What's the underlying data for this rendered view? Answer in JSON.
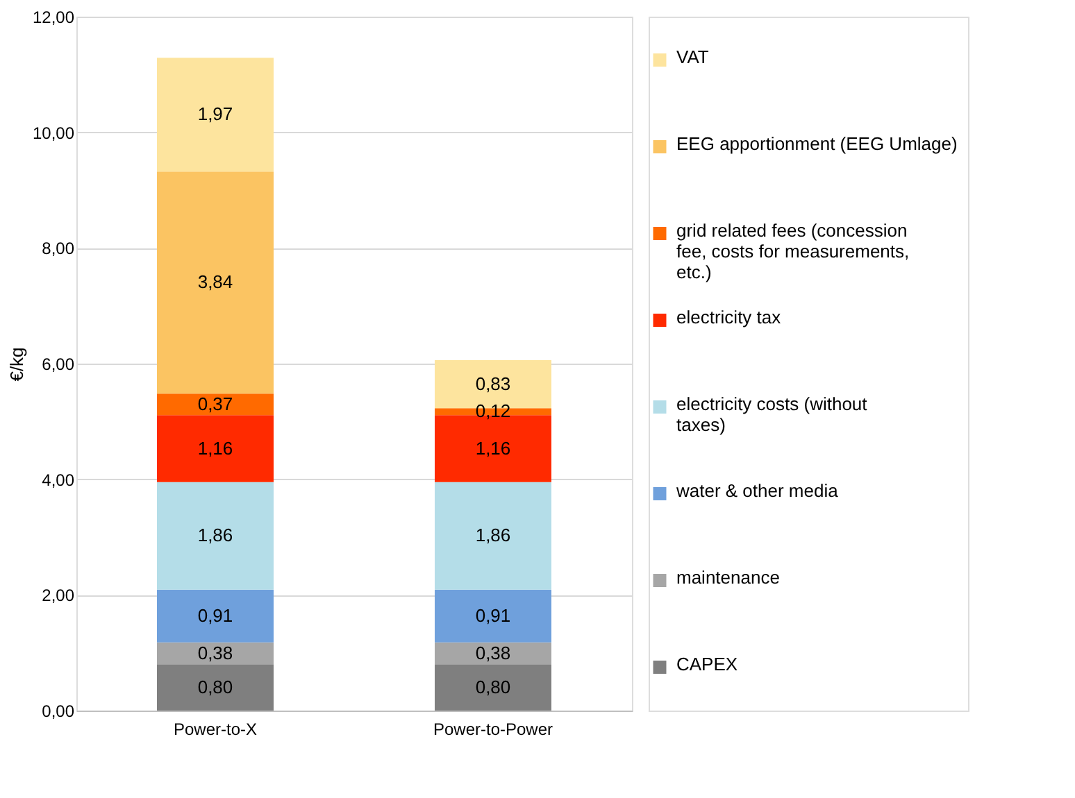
{
  "chart_data": {
    "type": "bar",
    "stacked": true,
    "ylabel": "€/kg",
    "categories": [
      "Power-to-X",
      "Power-to-Power"
    ],
    "ylim": [
      0,
      12
    ],
    "yticks": [
      {
        "value": 0,
        "label": "0,00"
      },
      {
        "value": 2,
        "label": "2,00"
      },
      {
        "value": 4,
        "label": "4,00"
      },
      {
        "value": 6,
        "label": "6,00"
      },
      {
        "value": 8,
        "label": "8,00"
      },
      {
        "value": 10,
        "label": "10,00"
      },
      {
        "value": 12,
        "label": "12,00"
      }
    ],
    "grid": "y",
    "legend": "right",
    "series": [
      {
        "name": "CAPEX",
        "color": "#7f7f7f",
        "values": [
          0.8,
          0.8
        ],
        "value_labels": [
          "0,80",
          "0,80"
        ]
      },
      {
        "name": "maintenance",
        "color": "#a6a6a6",
        "values": [
          0.38,
          0.38
        ],
        "value_labels": [
          "0,38",
          "0,38"
        ]
      },
      {
        "name": "water & other media",
        "color": "#6fa0dc",
        "values": [
          0.91,
          0.91
        ],
        "value_labels": [
          "0,91",
          "0,91"
        ]
      },
      {
        "name": "electricity costs (without taxes)",
        "color": "#b4dde8",
        "values": [
          1.86,
          1.86
        ],
        "value_labels": [
          "1,86",
          "1,86"
        ]
      },
      {
        "name": "electricity tax",
        "color": "#ff2a00",
        "values": [
          1.16,
          1.16
        ],
        "value_labels": [
          "1,16",
          "1,16"
        ]
      },
      {
        "name": "grid related fees (concession fee, costs for measurements, etc.)",
        "color": "#ff6a00",
        "values": [
          0.37,
          0.12
        ],
        "value_labels": [
          "0,37",
          "0,12"
        ]
      },
      {
        "name": "EEG apportionment (EEG Umlage)",
        "color": "#fbc462",
        "values": [
          3.84,
          null
        ],
        "value_labels": [
          "3,84",
          null
        ]
      },
      {
        "name": "VAT",
        "color": "#fde49e",
        "values": [
          1.97,
          0.83
        ],
        "value_labels": [
          "1,97",
          "0,83"
        ]
      }
    ]
  }
}
